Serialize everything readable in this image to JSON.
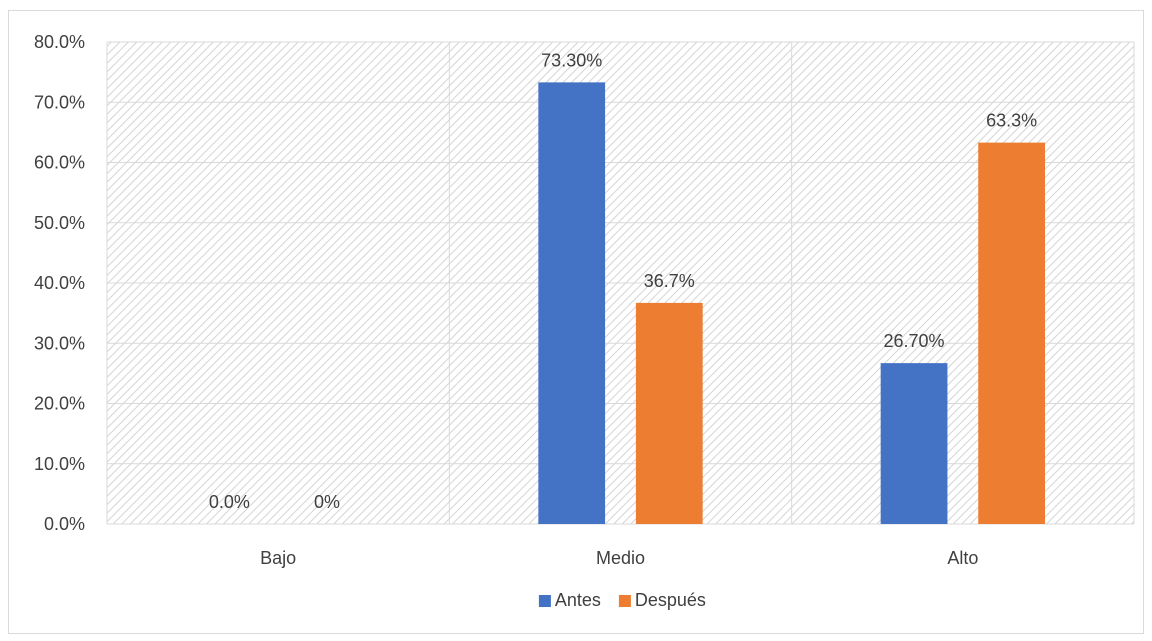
{
  "chart_data": {
    "type": "bar",
    "categories": [
      "Bajo",
      "Medio",
      "Alto"
    ],
    "series": [
      {
        "name": "Antes",
        "values": [
          0.0,
          73.3,
          26.7
        ],
        "labels": [
          "0.0%",
          "73.30%",
          "26.70%"
        ],
        "color": "#4472c4"
      },
      {
        "name": "Después",
        "values": [
          0.0,
          36.7,
          63.3
        ],
        "labels": [
          "0%",
          "36.7%",
          "63.3%"
        ],
        "color": "#ed7d31"
      }
    ],
    "ylim": [
      0,
      80
    ],
    "yticks": [
      0,
      10,
      20,
      30,
      40,
      50,
      60,
      70,
      80
    ],
    "ytick_labels": [
      "0.0%",
      "10.0%",
      "20.0%",
      "30.0%",
      "40.0%",
      "50.0%",
      "60.0%",
      "70.0%",
      "80.0%"
    ],
    "grid": true,
    "legend_position": "bottom",
    "plot_background": "diagonal-hatch"
  }
}
